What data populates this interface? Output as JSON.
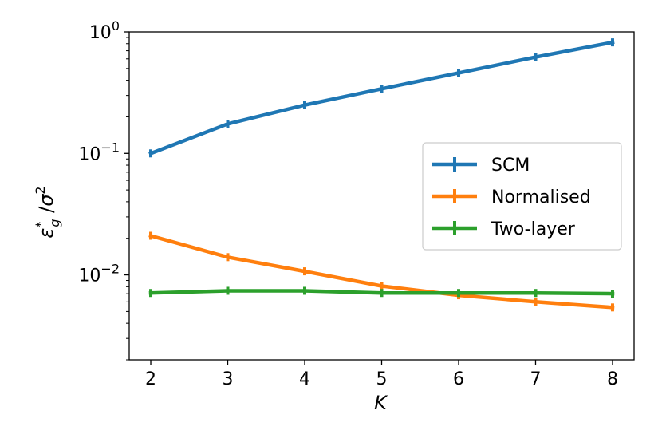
{
  "chart_data": {
    "type": "line",
    "title": "",
    "xlabel": "K",
    "ylabel": "ε*_g / σ²",
    "yscale": "log",
    "xlim": [
      1.72,
      8.28
    ],
    "ylim": [
      0.002,
      1.0
    ],
    "x": [
      2,
      3,
      4,
      5,
      6,
      7,
      8
    ],
    "x_ticks": [
      "2",
      "3",
      "4",
      "5",
      "6",
      "7",
      "8"
    ],
    "y_ticks": [
      {
        "value": 0.01,
        "base": "10",
        "exp": "−2"
      },
      {
        "value": 0.1,
        "base": "10",
        "exp": "−1"
      },
      {
        "value": 1.0,
        "base": "10",
        "exp": "0"
      }
    ],
    "legend": {
      "position": "center-right"
    },
    "grid": false,
    "series": [
      {
        "name": "SCM",
        "color": "#1f77b4",
        "values": [
          0.1,
          0.175,
          0.25,
          0.34,
          0.46,
          0.62,
          0.82
        ]
      },
      {
        "name": "Normalised",
        "color": "#ff7f0e",
        "values": [
          0.021,
          0.014,
          0.0107,
          0.0081,
          0.0068,
          0.006,
          0.0054
        ]
      },
      {
        "name": "Two-layer",
        "color": "#2ca02c",
        "values": [
          0.0071,
          0.0074,
          0.0074,
          0.0071,
          0.0071,
          0.0071,
          0.007
        ]
      }
    ]
  }
}
